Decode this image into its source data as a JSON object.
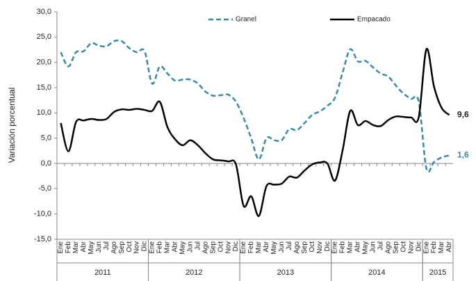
{
  "chart_data": {
    "type": "line",
    "y_label": "Variación porcentual",
    "categories": [
      "Ene",
      "Feb",
      "Mar",
      "Abr",
      "May",
      "Jun",
      "Jul",
      "Ago",
      "Sep",
      "Oct",
      "Nov",
      "Dic",
      "Ene",
      "Feb",
      "Mar",
      "Abr",
      "May",
      "Jun",
      "Jul",
      "Ago",
      "Sep",
      "Oct",
      "Nov",
      "Dic",
      "Ene",
      "Feb",
      "Mar",
      "Abr",
      "May",
      "Jun",
      "Jul",
      "Ago",
      "Sep",
      "Oct",
      "Nov",
      "Dic",
      "Ene",
      "Feb",
      "Mar",
      "Abr",
      "May",
      "Jun",
      "Jul",
      "Ago",
      "Sep",
      "Oct",
      "Nov",
      "Dic",
      "Ene",
      "Feb",
      "Mar",
      "Abr"
    ],
    "year_groups": [
      {
        "label": "2011",
        "months": 12
      },
      {
        "label": "2012",
        "months": 12
      },
      {
        "label": "2013",
        "months": 12
      },
      {
        "label": "2014",
        "months": 12
      },
      {
        "label": "2015",
        "months": 4
      }
    ],
    "ylim": [
      -15,
      30
    ],
    "yticks": [
      {
        "value": -15,
        "label": "-15,0"
      },
      {
        "value": -10,
        "label": "-10,0"
      },
      {
        "value": -5,
        "label": "-5,0"
      },
      {
        "value": 0,
        "label": "0,0"
      },
      {
        "value": 5,
        "label": "5,0"
      },
      {
        "value": 10,
        "label": "10,0"
      },
      {
        "value": 15,
        "label": "15,0"
      },
      {
        "value": 20,
        "label": "20,0"
      },
      {
        "value": 25,
        "label": "25,0"
      },
      {
        "value": 30,
        "label": "30,0"
      }
    ],
    "series": [
      {
        "name": "Granel",
        "color": "#3a8aa6",
        "dashed": true,
        "values": [
          22,
          19.2,
          22,
          22.2,
          23.8,
          23.3,
          23.2,
          24.2,
          24.2,
          22.8,
          22,
          22.2,
          15.8,
          19.2,
          17.8,
          16.4,
          16.6,
          16.6,
          15.8,
          14.2,
          13.4,
          13.5,
          13.6,
          12.2,
          9,
          5,
          0.8,
          5,
          4.6,
          4.6,
          6.8,
          6.6,
          8,
          9.6,
          10.3,
          11.4,
          13,
          18,
          22.6,
          20.2,
          20.3,
          19,
          17.8,
          17.2,
          15.4,
          13.8,
          12.8,
          12.2,
          -1,
          0.3,
          1.2,
          1.6
        ],
        "value_labels": [
          null,
          null,
          null,
          null,
          null,
          null,
          null,
          null,
          null,
          null,
          null,
          null,
          null,
          null,
          null,
          null,
          null,
          null,
          null,
          null,
          null,
          null,
          null,
          null,
          null,
          null,
          null,
          null,
          null,
          null,
          null,
          null,
          null,
          null,
          null,
          null,
          null,
          null,
          null,
          null,
          null,
          null,
          null,
          null,
          null,
          null,
          null,
          null,
          null,
          null,
          null,
          "1,6"
        ]
      },
      {
        "name": "Empacado",
        "color": "#000000",
        "dashed": false,
        "values": [
          8,
          2.4,
          8.2,
          8.5,
          8.8,
          8.6,
          8.8,
          10.2,
          10.7,
          10.6,
          10.8,
          10.6,
          10.4,
          12.2,
          7.2,
          4.8,
          3.6,
          4.6,
          3.6,
          2,
          0.8,
          0.6,
          0.4,
          -0.2,
          -8.4,
          -6.5,
          -10.4,
          -4.5,
          -4.2,
          -4,
          -2.6,
          -2.8,
          -1.4,
          -0.2,
          0.2,
          0,
          -3.4,
          2.6,
          10.4,
          7.6,
          8.4,
          7.6,
          7.4,
          8.6,
          9.3,
          9.2,
          9.1,
          9.2,
          22.6,
          15.2,
          11,
          9.6
        ],
        "value_labels": [
          null,
          null,
          null,
          null,
          null,
          null,
          null,
          null,
          null,
          null,
          null,
          null,
          null,
          null,
          null,
          null,
          null,
          null,
          null,
          null,
          null,
          null,
          null,
          null,
          null,
          null,
          null,
          null,
          null,
          null,
          null,
          null,
          null,
          null,
          null,
          null,
          null,
          null,
          null,
          null,
          null,
          null,
          null,
          null,
          null,
          null,
          null,
          null,
          null,
          null,
          null,
          "9,6"
        ]
      }
    ]
  }
}
